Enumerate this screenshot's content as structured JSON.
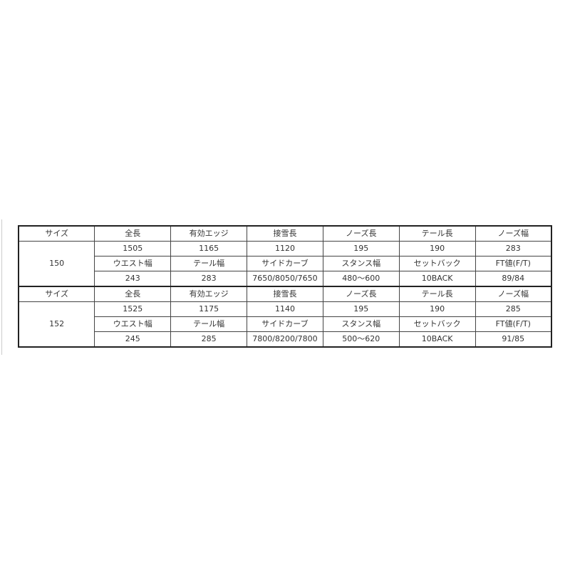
{
  "table": {
    "blocks": [
      {
        "size_label": "サイズ",
        "size": "150",
        "header1": [
          "全長",
          "有効エッジ",
          "接雪長",
          "ノーズ長",
          "テール長",
          "ノーズ幅"
        ],
        "values1": [
          "1505",
          "1165",
          "1120",
          "195",
          "190",
          "283"
        ],
        "header2": [
          "ウエスト幅",
          "テール幅",
          "サイドカーブ",
          "スタンス幅",
          "セットバック",
          "FT値(F/T)"
        ],
        "values2": [
          "243",
          "283",
          "7650/8050/7650",
          "480～600",
          "10BACK",
          "89/84"
        ]
      },
      {
        "size_label": "サイズ",
        "size": "152",
        "header1": [
          "全長",
          "有効エッジ",
          "接雪長",
          "ノーズ長",
          "テール長",
          "ノーズ幅"
        ],
        "values1": [
          "1525",
          "1175",
          "1140",
          "195",
          "190",
          "285"
        ],
        "header2": [
          "ウエスト幅",
          "テール幅",
          "サイドカーブ",
          "スタンス幅",
          "セットバック",
          "FT値(F/T)"
        ],
        "values2": [
          "245",
          "285",
          "7800/8200/7800",
          "500～620",
          "10BACK",
          "91/85"
        ]
      }
    ]
  }
}
